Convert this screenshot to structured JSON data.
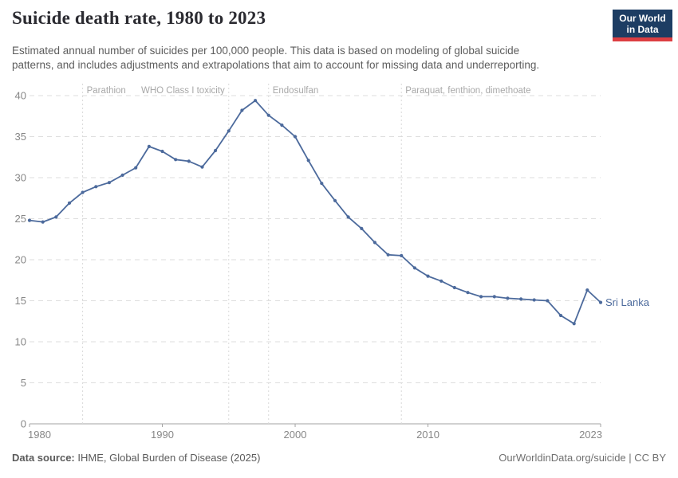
{
  "header": {
    "title": "Suicide death rate, 1980 to 2023",
    "logo": {
      "line1": "Our World",
      "line2": "in Data",
      "bg_color": "#1d3d63",
      "accent_color": "#dc3e42"
    }
  },
  "subtitle": "Estimated annual number of suicides per 100,000 people. This data is based on modeling of global suicide\npatterns, and includes adjustments and extrapolations that aim to account for missing data and underreporting.",
  "footer": {
    "source_label": "Data source:",
    "source_value": "IHME, Global Burden of Disease (2025)",
    "attribution": "OurWorldinData.org/suicide | CC BY"
  },
  "chart_data": {
    "type": "line",
    "title": "Suicide death rate, 1980 to 2023",
    "xlabel": "",
    "ylabel": "",
    "xlim": [
      1980,
      2023
    ],
    "ylim": [
      0,
      40
    ],
    "xticks": [
      1980,
      1990,
      2000,
      2010,
      2023
    ],
    "yticks": [
      0,
      5,
      10,
      15,
      20,
      25,
      30,
      35,
      40
    ],
    "grid": "horizontal-dashed",
    "legend_position": "end-of-line-label",
    "x": [
      1980,
      1981,
      1982,
      1983,
      1984,
      1985,
      1986,
      1987,
      1988,
      1989,
      1990,
      1991,
      1992,
      1993,
      1994,
      1995,
      1996,
      1997,
      1998,
      1999,
      2000,
      2001,
      2002,
      2003,
      2004,
      2005,
      2006,
      2007,
      2008,
      2009,
      2010,
      2011,
      2012,
      2013,
      2014,
      2015,
      2016,
      2017,
      2018,
      2019,
      2020,
      2021,
      2022,
      2023
    ],
    "series": [
      {
        "name": "Sri Lanka",
        "color": "#4c6a9c",
        "values": [
          24.8,
          24.6,
          25.2,
          26.9,
          28.2,
          28.9,
          29.4,
          30.3,
          31.2,
          33.8,
          33.2,
          32.2,
          32.0,
          31.3,
          33.3,
          35.7,
          38.2,
          39.4,
          37.6,
          36.4,
          35.0,
          32.1,
          29.3,
          27.2,
          25.2,
          23.8,
          22.1,
          20.6,
          20.5,
          19.0,
          18.0,
          17.4,
          16.6,
          16.0,
          15.5,
          15.5,
          15.3,
          15.2,
          15.1,
          15.0,
          13.2,
          12.2,
          16.3,
          14.8
        ]
      }
    ],
    "end_label": "Sri Lanka",
    "annotations": [
      {
        "year": 1984,
        "label": "Parathion",
        "align": "left"
      },
      {
        "year": 1995,
        "label": "WHO Class I toxicity",
        "align": "right"
      },
      {
        "year": 1998,
        "label": "Endosulfan",
        "align": "left"
      },
      {
        "year": 2008,
        "label": "Paraquat, fenthion, dimethoate",
        "align": "left"
      }
    ],
    "colors": {
      "grid": "#dedede",
      "axis": "#a3a3a3",
      "tick_label": "#878787",
      "annotation_line": "#d9d9d9",
      "annotation_label": "#a8a8a8"
    }
  }
}
